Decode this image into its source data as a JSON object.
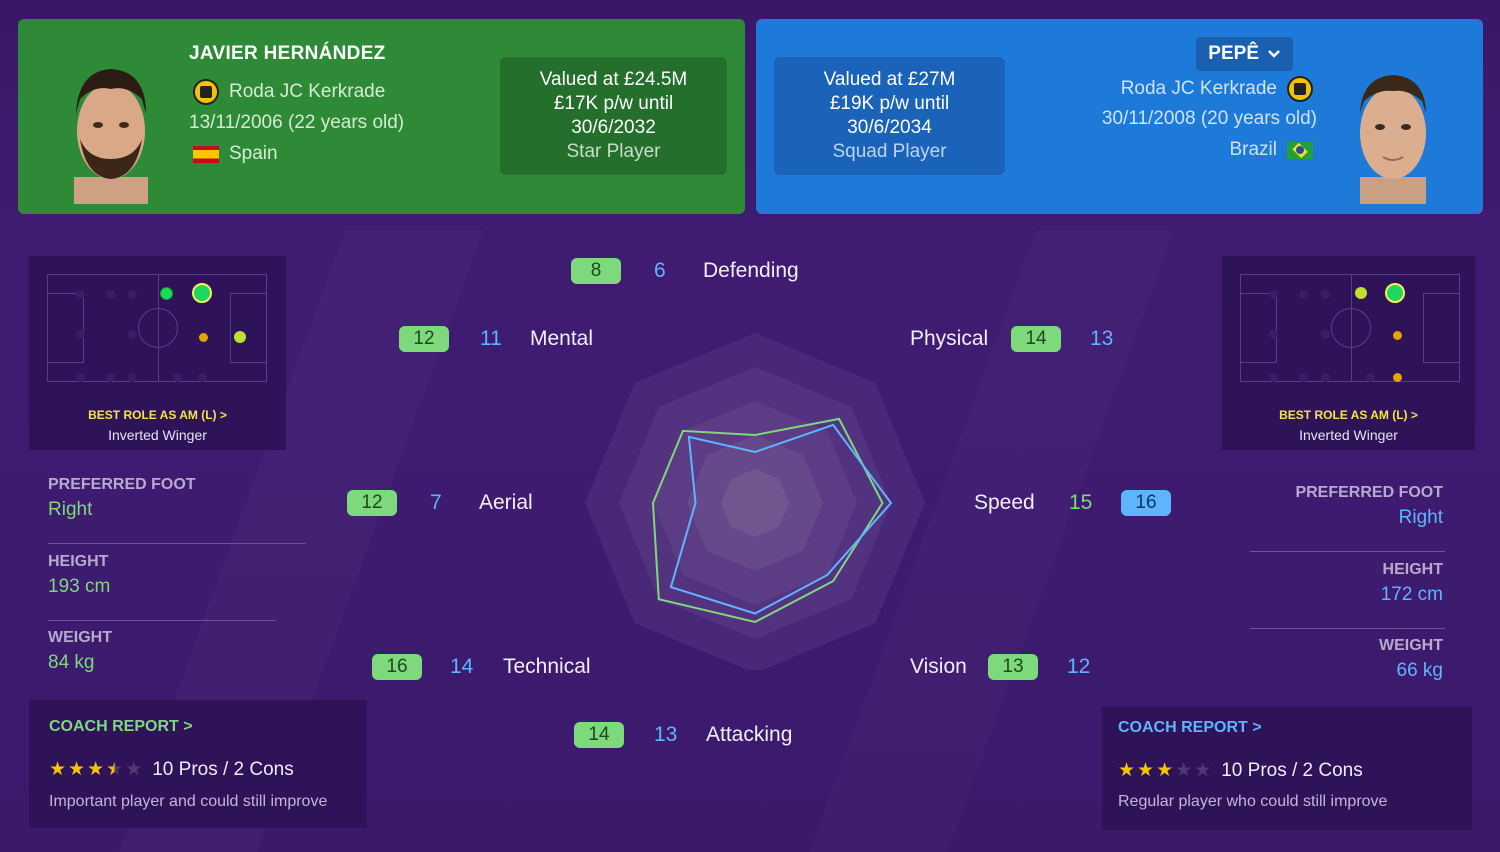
{
  "left_player": {
    "name": "JAVIER HERNÁNDEZ",
    "club": "Roda JC Kerkrade",
    "dob": "13/11/2006 (22 years old)",
    "nation": "Spain",
    "value_line1": "Valued at £24.5M",
    "value_line2": "£17K p/w until",
    "value_line3": "30/6/2032",
    "status": "Star Player",
    "best_role_title": "BEST ROLE AS AM (L) >",
    "best_role": "Inverted Winger",
    "preferred_foot_label": "PREFERRED FOOT",
    "preferred_foot": "Right",
    "height_label": "HEIGHT",
    "height": "193 cm",
    "weight_label": "WEIGHT",
    "weight": "84 kg",
    "coach_title": "COACH REPORT >",
    "stars": 3.5,
    "pros_cons": "10 Pros / 2 Cons",
    "coach_desc": "Important player and could still improve"
  },
  "right_player": {
    "name": "PEPÊ",
    "club": "Roda JC Kerkrade",
    "dob": "30/11/2008 (20 years old)",
    "nation": "Brazil",
    "value_line1": "Valued at £27M",
    "value_line2": "£19K p/w until",
    "value_line3": "30/6/2034",
    "status": "Squad Player",
    "best_role_title": "BEST ROLE AS AM (L) >",
    "best_role": "Inverted Winger",
    "preferred_foot_label": "PREFERRED FOOT",
    "preferred_foot": "Right",
    "height_label": "HEIGHT",
    "height": "172 cm",
    "weight_label": "WEIGHT",
    "weight": "66 kg",
    "coach_title": "COACH REPORT >",
    "stars": 3,
    "pros_cons": "10 Pros / 2 Cons",
    "coach_desc": "Regular player who could still improve"
  },
  "colors": {
    "left_accent": "#7ed87c",
    "right_accent": "#5fb4ff",
    "left_card": "#2f8a37",
    "right_card": "#1e7ad8",
    "background": "#3d1a6e"
  },
  "radar": {
    "attributes": [
      {
        "name": "Defending",
        "left": "8",
        "right": "6"
      },
      {
        "name": "Physical",
        "left": "14",
        "right": "13"
      },
      {
        "name": "Speed",
        "left": "15",
        "right": "16"
      },
      {
        "name": "Vision",
        "left": "13",
        "right": "12"
      },
      {
        "name": "Attacking",
        "left": "14",
        "right": "13"
      },
      {
        "name": "Technical",
        "left": "16",
        "right": "14"
      },
      {
        "name": "Aerial",
        "left": "12",
        "right": "7"
      },
      {
        "name": "Mental",
        "left": "12",
        "right": "11"
      }
    ]
  }
}
